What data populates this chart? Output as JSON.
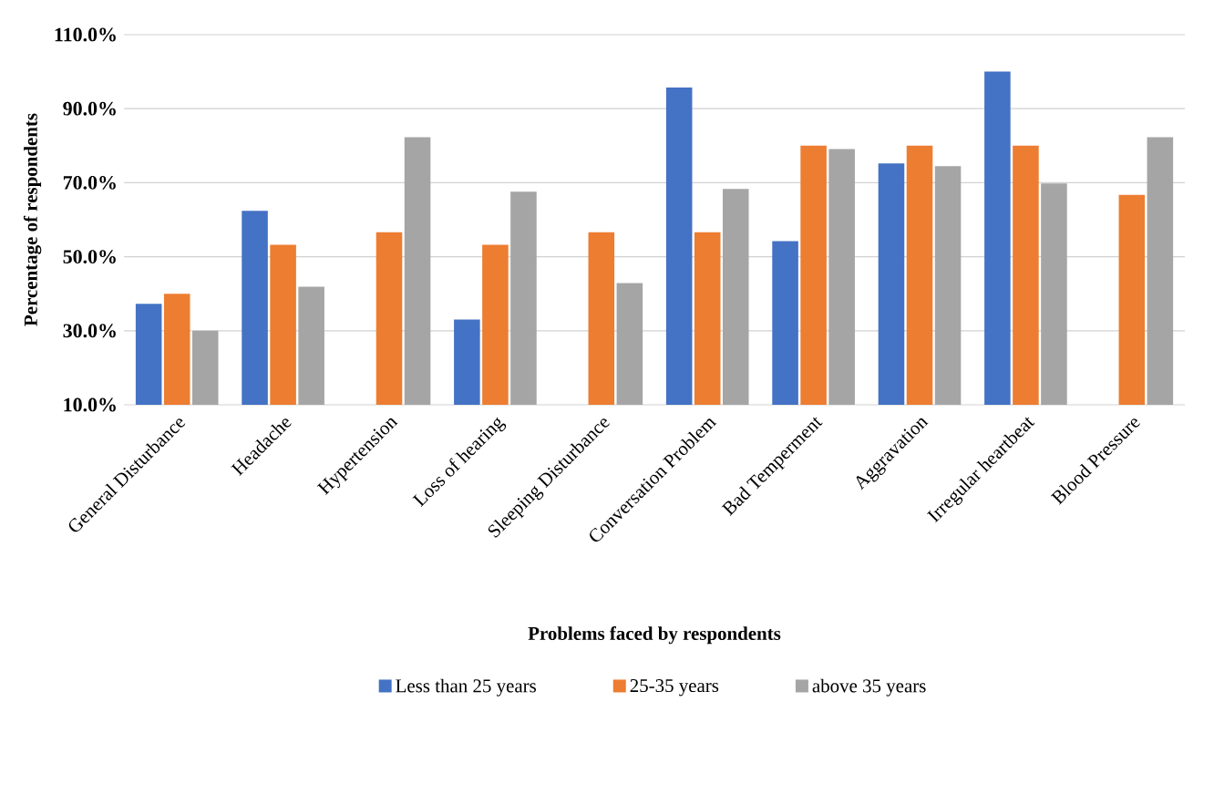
{
  "chart_data": {
    "type": "bar",
    "xlabel": "Problems faced by respondents",
    "ylabel": "Percentage of respondents",
    "categories": [
      "General Disturbance",
      "Headache",
      "Hypertension",
      "Loss of hearing",
      "Sleeping Disturbance",
      "Conversation Problem",
      "Bad Temperment",
      "Aggravation",
      "Irregular heartbeat",
      "Blood Pressure"
    ],
    "series": [
      {
        "name": "Less than 25 years",
        "color": "#4472c4",
        "values": [
          37.3,
          62.4,
          10,
          33,
          10,
          95.7,
          54.2,
          75.2,
          100,
          10
        ]
      },
      {
        "name": "25-35 years",
        "color": "#ed7d31",
        "values": [
          40,
          53.2,
          56.6,
          53.2,
          56.6,
          56.6,
          80,
          80,
          80,
          66.7
        ]
      },
      {
        "name": "above 35 years",
        "color": "#a5a5a5",
        "values": [
          30,
          41.9,
          82.3,
          67.6,
          42.9,
          68.3,
          79.1,
          74.5,
          69.8,
          82.3
        ]
      }
    ],
    "ylim": [
      10,
      110
    ],
    "yticks": [
      {
        "value": 10,
        "label": "10.0%"
      },
      {
        "value": 30,
        "label": "30.0%"
      },
      {
        "value": 50,
        "label": "50.0%"
      },
      {
        "value": 70,
        "label": "70.0%"
      },
      {
        "value": 90,
        "label": "90.0%"
      },
      {
        "value": 110,
        "label": "110.0%"
      }
    ],
    "grid": "y",
    "legend": "bottom"
  }
}
